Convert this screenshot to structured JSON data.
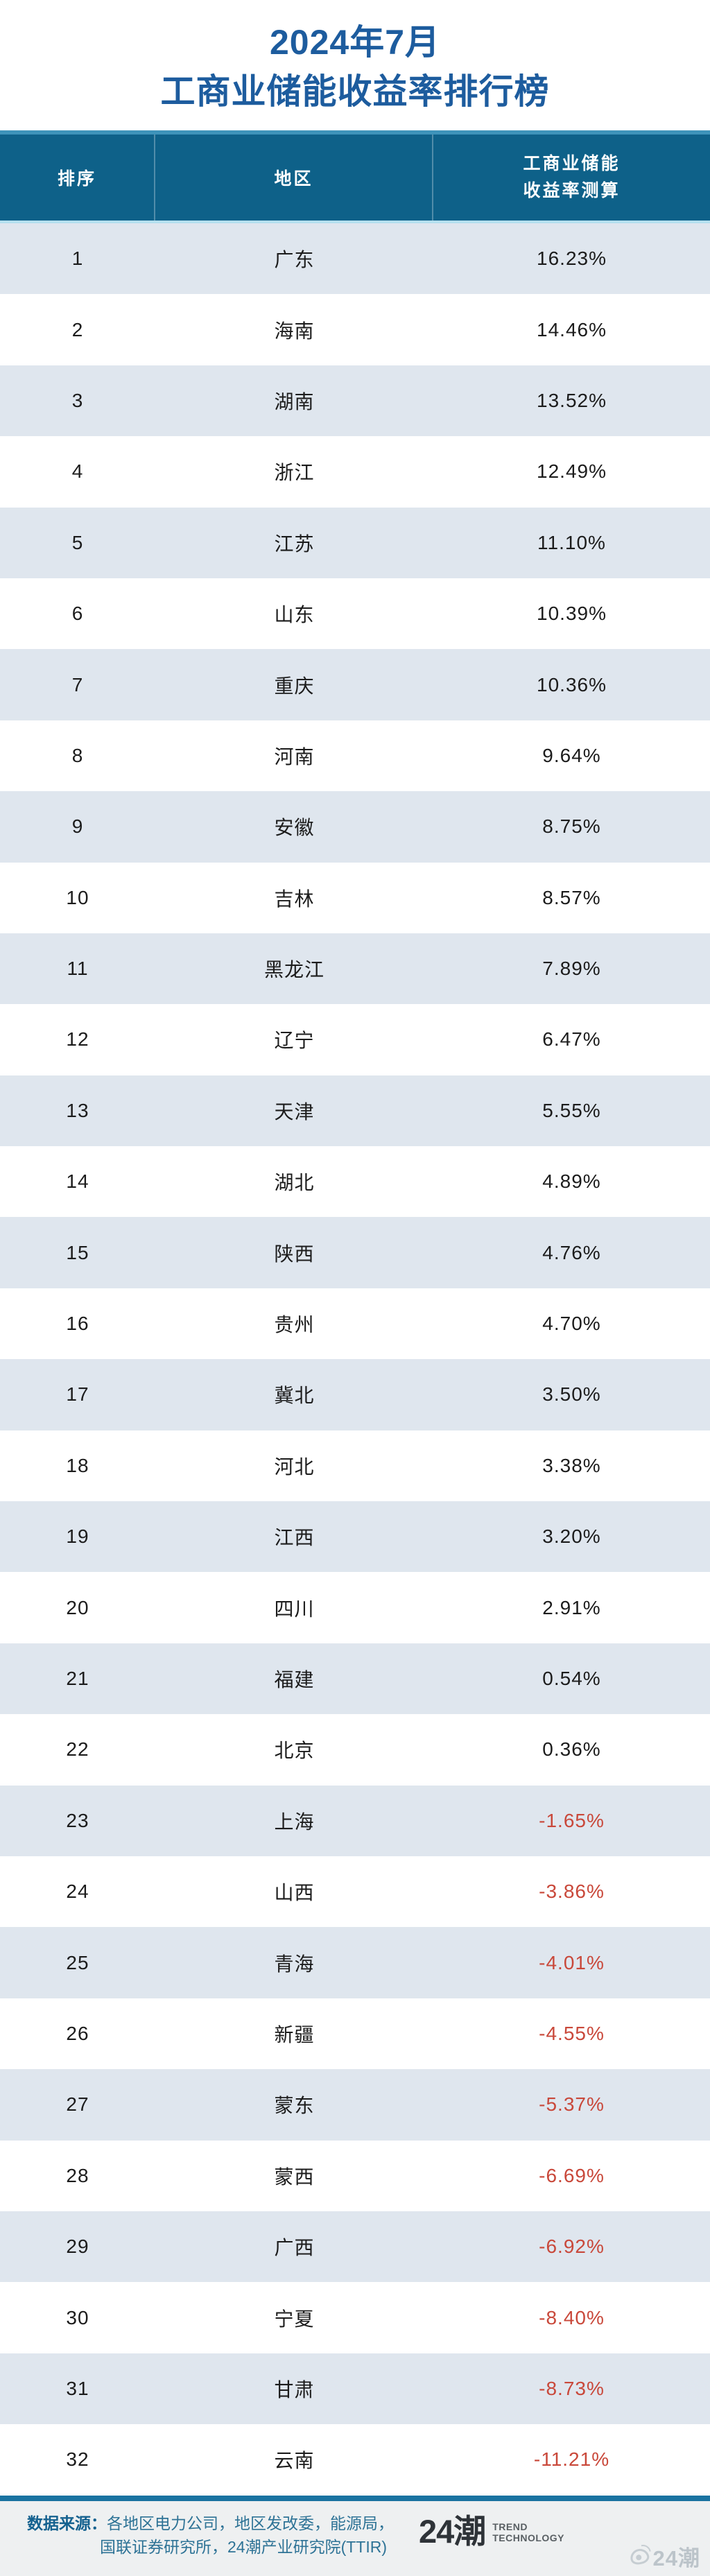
{
  "title": {
    "line1": "2024年7月",
    "line2": "工商业储能收益率排行榜"
  },
  "table": {
    "header": {
      "rank": "排序",
      "region": "地区",
      "value_line1": "工商业储能",
      "value_line2": "收益率测算"
    },
    "rows": [
      {
        "rank": "1",
        "region": "广东",
        "value": "16.23%",
        "negative": false
      },
      {
        "rank": "2",
        "region": "海南",
        "value": "14.46%",
        "negative": false
      },
      {
        "rank": "3",
        "region": "湖南",
        "value": "13.52%",
        "negative": false
      },
      {
        "rank": "4",
        "region": "浙江",
        "value": "12.49%",
        "negative": false
      },
      {
        "rank": "5",
        "region": "江苏",
        "value": "11.10%",
        "negative": false
      },
      {
        "rank": "6",
        "region": "山东",
        "value": "10.39%",
        "negative": false
      },
      {
        "rank": "7",
        "region": "重庆",
        "value": "10.36%",
        "negative": false
      },
      {
        "rank": "8",
        "region": "河南",
        "value": "9.64%",
        "negative": false
      },
      {
        "rank": "9",
        "region": "安徽",
        "value": "8.75%",
        "negative": false
      },
      {
        "rank": "10",
        "region": "吉林",
        "value": "8.57%",
        "negative": false
      },
      {
        "rank": "11",
        "region": "黑龙江",
        "value": "7.89%",
        "negative": false
      },
      {
        "rank": "12",
        "region": "辽宁",
        "value": "6.47%",
        "negative": false
      },
      {
        "rank": "13",
        "region": "天津",
        "value": "5.55%",
        "negative": false
      },
      {
        "rank": "14",
        "region": "湖北",
        "value": "4.89%",
        "negative": false
      },
      {
        "rank": "15",
        "region": "陕西",
        "value": "4.76%",
        "negative": false
      },
      {
        "rank": "16",
        "region": "贵州",
        "value": "4.70%",
        "negative": false
      },
      {
        "rank": "17",
        "region": "冀北",
        "value": "3.50%",
        "negative": false
      },
      {
        "rank": "18",
        "region": "河北",
        "value": "3.38%",
        "negative": false
      },
      {
        "rank": "19",
        "region": "江西",
        "value": "3.20%",
        "negative": false
      },
      {
        "rank": "20",
        "region": "四川",
        "value": "2.91%",
        "negative": false
      },
      {
        "rank": "21",
        "region": "福建",
        "value": "0.54%",
        "negative": false
      },
      {
        "rank": "22",
        "region": "北京",
        "value": "0.36%",
        "negative": false
      },
      {
        "rank": "23",
        "region": "上海",
        "value": "-1.65%",
        "negative": true
      },
      {
        "rank": "24",
        "region": "山西",
        "value": "-3.86%",
        "negative": true
      },
      {
        "rank": "25",
        "region": "青海",
        "value": "-4.01%",
        "negative": true
      },
      {
        "rank": "26",
        "region": "新疆",
        "value": "-4.55%",
        "negative": true
      },
      {
        "rank": "27",
        "region": "蒙东",
        "value": "-5.37%",
        "negative": true
      },
      {
        "rank": "28",
        "region": "蒙西",
        "value": "-6.69%",
        "negative": true
      },
      {
        "rank": "29",
        "region": "广西",
        "value": "-6.92%",
        "negative": true
      },
      {
        "rank": "30",
        "region": "宁夏",
        "value": "-8.40%",
        "negative": true
      },
      {
        "rank": "31",
        "region": "甘肃",
        "value": "-8.73%",
        "negative": true
      },
      {
        "rank": "32",
        "region": "云南",
        "value": "-11.21%",
        "negative": true
      }
    ]
  },
  "footer": {
    "source_label": "数据来源：",
    "source_line1": "各地区电力公司，地区发改委，能源局，",
    "source_line2": "国联证券研究所，24潮产业研究院(TTIR)",
    "logo_text": "24潮",
    "logo_sub_line1": "TREND",
    "logo_sub_line2": "TECHNOLOGY",
    "watermark_text": "24潮"
  },
  "colors": {
    "title_blue": "#1d5c9e",
    "header_bg": "#0e6189",
    "header_top_strip": "#3e93ba",
    "header_bottom_strip": "#b5e0ef",
    "row_alt_bg": "#dfe6ee",
    "negative_red": "#c9483a",
    "divider": "#1a73a1",
    "footer_bg": "#eef0f1",
    "footer_text": "#2e7396"
  },
  "chart_data": {
    "type": "table",
    "title": "2024年7月 工商业储能收益率排行榜",
    "columns": [
      "排序",
      "地区",
      "工商业储能收益率测算"
    ],
    "categories": [
      "广东",
      "海南",
      "湖南",
      "浙江",
      "江苏",
      "山东",
      "重庆",
      "河南",
      "安徽",
      "吉林",
      "黑龙江",
      "辽宁",
      "天津",
      "湖北",
      "陕西",
      "贵州",
      "冀北",
      "河北",
      "江西",
      "四川",
      "福建",
      "北京",
      "上海",
      "山西",
      "青海",
      "新疆",
      "蒙东",
      "蒙西",
      "广西",
      "宁夏",
      "甘肃",
      "云南"
    ],
    "values": [
      16.23,
      14.46,
      13.52,
      12.49,
      11.1,
      10.39,
      10.36,
      9.64,
      8.75,
      8.57,
      7.89,
      6.47,
      5.55,
      4.89,
      4.76,
      4.7,
      3.5,
      3.38,
      3.2,
      2.91,
      0.54,
      0.36,
      -1.65,
      -3.86,
      -4.01,
      -4.55,
      -5.37,
      -6.69,
      -6.92,
      -8.4,
      -8.73,
      -11.21
    ],
    "unit": "%"
  }
}
